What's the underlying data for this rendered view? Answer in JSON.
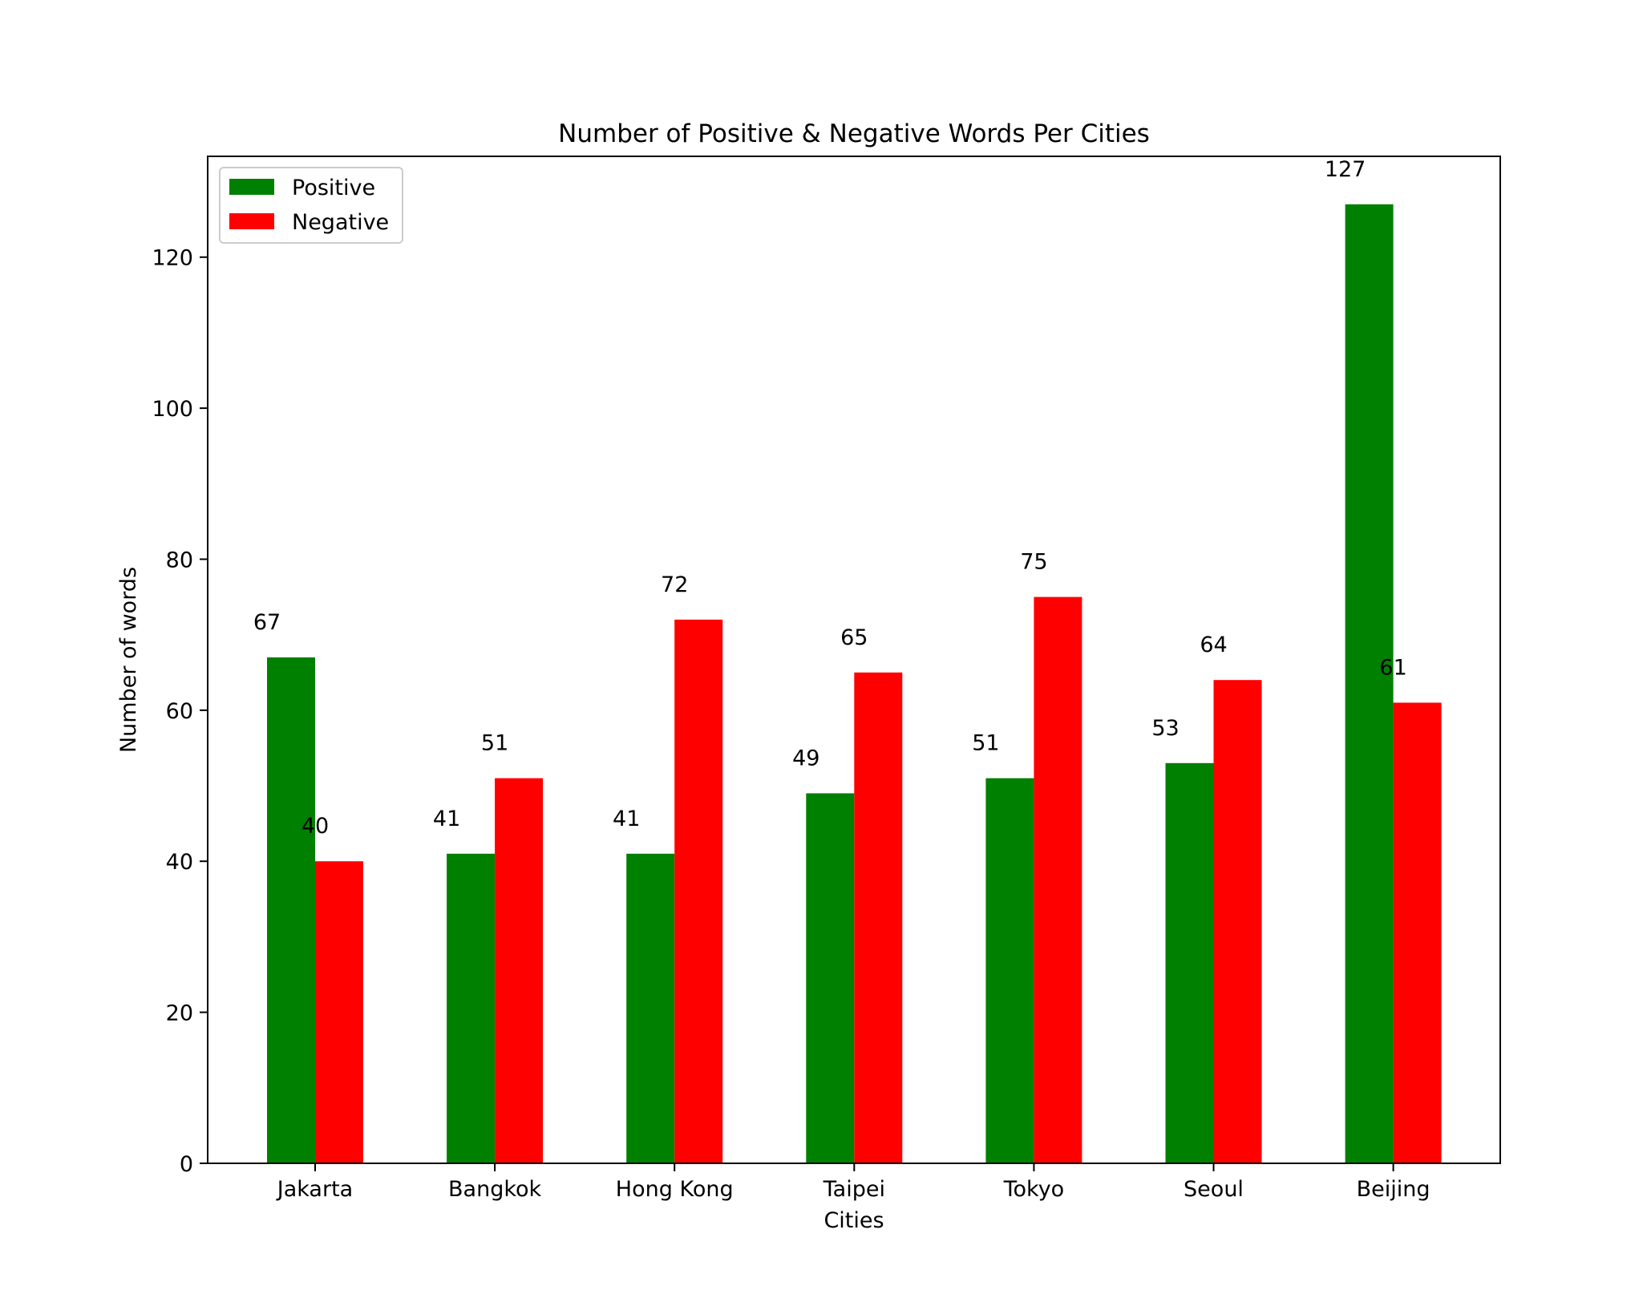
{
  "chart_data": {
    "type": "bar",
    "title": "Number of Positive & Negative Words Per Cities",
    "xlabel": "Cities",
    "ylabel": "Number of words",
    "categories": [
      "Jakarta",
      "Bangkok",
      "Hong Kong",
      "Taipei",
      "Tokyo",
      "Seoul",
      "Beijing"
    ],
    "series": [
      {
        "name": "Positive",
        "color": "#008000",
        "values": [
          67,
          41,
          41,
          49,
          51,
          53,
          127
        ]
      },
      {
        "name": "Negative",
        "color": "#ff0000",
        "values": [
          40,
          51,
          72,
          65,
          75,
          64,
          61
        ]
      }
    ],
    "ylim": [
      0,
      133.35
    ],
    "yticks": [
      0,
      20,
      40,
      60,
      80,
      100,
      120
    ],
    "legend_position": "top-left",
    "grid": false,
    "value_labels": true
  }
}
